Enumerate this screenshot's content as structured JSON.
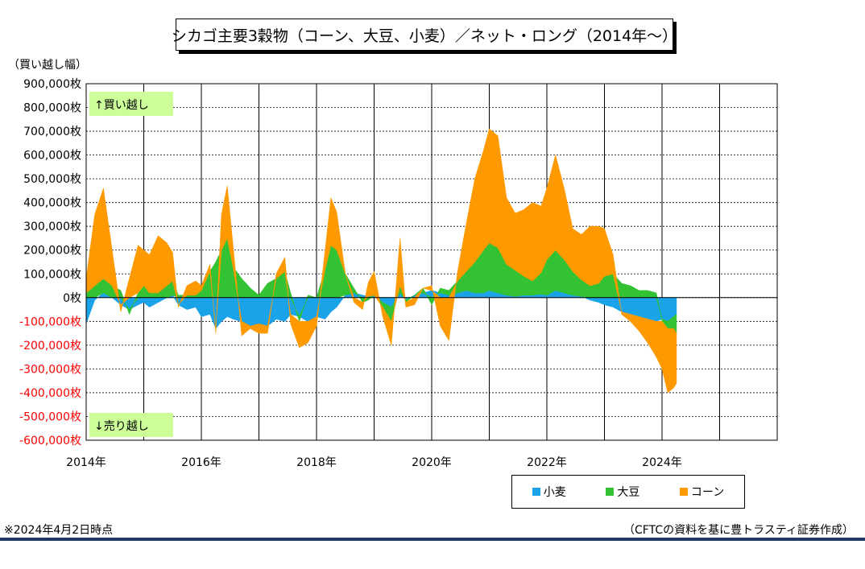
{
  "title": "シカゴ主要3穀物（コーン、大豆、小麦）／ネット・ロング（2014年～）",
  "unit_label": "（買い越し幅）",
  "annotations": {
    "long": "↑買い越し",
    "short": "↓売り越し"
  },
  "footnote_left": "※2024年4月2日時点",
  "footnote_right": "（CFTCの資料を基に豊トラスティ証券作成）",
  "colors": {
    "wheat": "#1AA3E8",
    "soybean": "#33C233",
    "corn": "#FF9900",
    "negative_tick": "#FF0000",
    "annotation_bg": "#CCFF99",
    "bottom_rule": "#1F3864"
  },
  "chart_data": {
    "type": "area",
    "stacked": true,
    "title": "シカゴ主要3穀物（コーン、大豆、小麦）／ネット・ロング（2014年～）",
    "ylabel": "（買い越し幅）",
    "ylim": [
      -600000,
      900000
    ],
    "yticks": [
      {
        "value": 900000,
        "label": "900,000枚"
      },
      {
        "value": 800000,
        "label": "800,000枚"
      },
      {
        "value": 700000,
        "label": "700,000枚"
      },
      {
        "value": 600000,
        "label": "600,000枚"
      },
      {
        "value": 500000,
        "label": "500,000枚"
      },
      {
        "value": 400000,
        "label": "400,000枚"
      },
      {
        "value": 300000,
        "label": "300,000枚"
      },
      {
        "value": 200000,
        "label": "200,000枚"
      },
      {
        "value": 100000,
        "label": "100,000枚"
      },
      {
        "value": 0,
        "label": "0枚"
      },
      {
        "value": -100000,
        "label": "-100,000枚"
      },
      {
        "value": -200000,
        "label": "-200,000枚"
      },
      {
        "value": -300000,
        "label": "-300,000枚"
      },
      {
        "value": -400000,
        "label": "-400,000枚"
      },
      {
        "value": -500000,
        "label": "-500,000枚"
      },
      {
        "value": -600000,
        "label": "-600,000枚"
      }
    ],
    "xlim": [
      2014.0,
      2026.0
    ],
    "xticks": [
      {
        "value": 2014,
        "label": "2014年"
      },
      {
        "value": 2016,
        "label": "2016年"
      },
      {
        "value": 2018,
        "label": "2018年"
      },
      {
        "value": 2020,
        "label": "2020年"
      },
      {
        "value": 2022,
        "label": "2022年"
      },
      {
        "value": 2024,
        "label": "2024年"
      }
    ],
    "grid": true,
    "legend_position": "bottom-right",
    "x": [
      2014.0,
      2014.15,
      2014.3,
      2014.45,
      2014.6,
      2014.75,
      2014.9,
      2015.0,
      2015.1,
      2015.25,
      2015.4,
      2015.5,
      2015.6,
      2015.75,
      2015.9,
      2016.0,
      2016.15,
      2016.25,
      2016.35,
      2016.45,
      2016.55,
      2016.7,
      2016.85,
      2017.0,
      2017.15,
      2017.3,
      2017.45,
      2017.55,
      2017.7,
      2017.85,
      2018.0,
      2018.15,
      2018.25,
      2018.35,
      2018.5,
      2018.65,
      2018.8,
      2018.9,
      2019.0,
      2019.15,
      2019.3,
      2019.45,
      2019.55,
      2019.7,
      2019.85,
      2020.0,
      2020.15,
      2020.3,
      2020.45,
      2020.6,
      2020.75,
      2020.9,
      2021.0,
      2021.15,
      2021.3,
      2021.45,
      2021.6,
      2021.75,
      2021.9,
      2022.0,
      2022.15,
      2022.3,
      2022.45,
      2022.6,
      2022.75,
      2022.9,
      2023.0,
      2023.15,
      2023.3,
      2023.45,
      2023.6,
      2023.75,
      2023.9,
      2024.0,
      2024.1,
      2024.2,
      2024.25
    ],
    "series": [
      {
        "name": "小麦",
        "color": "#1AA3E8",
        "values": [
          -110000,
          -10000,
          20000,
          0,
          -30000,
          -50000,
          -30000,
          -20000,
          -40000,
          -20000,
          0,
          10000,
          -30000,
          -50000,
          -40000,
          -80000,
          -70000,
          -130000,
          -100000,
          -80000,
          -90000,
          -100000,
          -120000,
          -110000,
          -120000,
          -90000,
          -100000,
          -70000,
          -80000,
          -100000,
          -80000,
          -90000,
          -60000,
          -40000,
          10000,
          20000,
          10000,
          5000,
          10000,
          -20000,
          -40000,
          20000,
          -10000,
          10000,
          20000,
          30000,
          20000,
          10000,
          20000,
          30000,
          20000,
          20000,
          30000,
          20000,
          10000,
          5000,
          10000,
          10000,
          15000,
          10000,
          30000,
          20000,
          10000,
          5000,
          -10000,
          -20000,
          -30000,
          -40000,
          -60000,
          -70000,
          -80000,
          -90000,
          -100000,
          -90000,
          -100000,
          -80000,
          -70000
        ]
      },
      {
        "name": "大豆",
        "color": "#33C233",
        "values": [
          20000,
          50000,
          60000,
          50000,
          30000,
          -20000,
          20000,
          50000,
          20000,
          20000,
          50000,
          60000,
          10000,
          10000,
          10000,
          30000,
          110000,
          150000,
          200000,
          250000,
          130000,
          80000,
          40000,
          10000,
          60000,
          80000,
          110000,
          20000,
          -20000,
          10000,
          0,
          120000,
          220000,
          200000,
          90000,
          20000,
          -20000,
          -10000,
          0,
          -20000,
          -60000,
          30000,
          -10000,
          0,
          20000,
          -30000,
          20000,
          20000,
          50000,
          80000,
          130000,
          180000,
          200000,
          190000,
          130000,
          110000,
          80000,
          60000,
          90000,
          150000,
          170000,
          140000,
          100000,
          70000,
          50000,
          60000,
          90000,
          100000,
          60000,
          50000,
          30000,
          30000,
          20000,
          -10000,
          -30000,
          -50000,
          -80000
        ]
      },
      {
        "name": "コーン",
        "color": "#FF9900",
        "values": [
          60000,
          300000,
          380000,
          150000,
          -30000,
          80000,
          200000,
          150000,
          160000,
          240000,
          180000,
          120000,
          -10000,
          40000,
          60000,
          20000,
          30000,
          -20000,
          150000,
          220000,
          90000,
          -60000,
          -10000,
          -40000,
          -30000,
          20000,
          60000,
          -40000,
          -110000,
          -90000,
          -40000,
          80000,
          200000,
          160000,
          0,
          -20000,
          -30000,
          60000,
          100000,
          -40000,
          -100000,
          200000,
          -20000,
          -30000,
          0,
          20000,
          -120000,
          -180000,
          40000,
          200000,
          350000,
          420000,
          480000,
          470000,
          280000,
          240000,
          280000,
          330000,
          280000,
          300000,
          400000,
          300000,
          180000,
          190000,
          250000,
          240000,
          200000,
          80000,
          -10000,
          -30000,
          -60000,
          -100000,
          -150000,
          -200000,
          -270000,
          -250000,
          -210000
        ]
      }
    ]
  }
}
